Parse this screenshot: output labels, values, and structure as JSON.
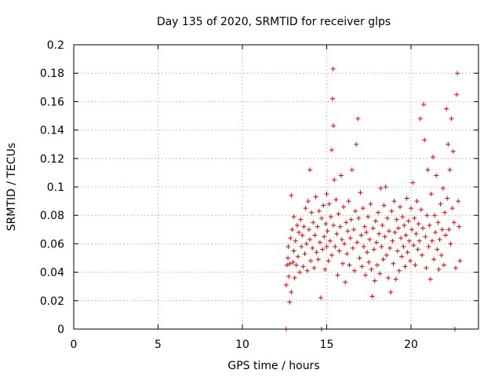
{
  "chart_data": {
    "type": "scatter",
    "title": "Day 135 of 2020, SRMTID for receiver glps",
    "xlabel": "GPS time / hours",
    "ylabel": "SRMTID / TECUs",
    "xlim": [
      0,
      24
    ],
    "ylim": [
      0,
      0.2
    ],
    "xticks": [
      0,
      5,
      10,
      15,
      20
    ],
    "xtick_labels": [
      "0",
      "5",
      "10",
      "15",
      "20"
    ],
    "yticks": [
      0,
      0.02,
      0.04,
      0.06,
      0.08,
      0.1,
      0.12,
      0.14,
      0.16,
      0.18,
      0.2
    ],
    "ytick_labels": [
      "0",
      "0.02",
      "0.04",
      "0.06",
      "0.08",
      "0.1",
      "0.12",
      "0.14",
      "0.16",
      "0.18",
      "0.2"
    ],
    "grid": true,
    "marker": "+",
    "color": "#e00000",
    "series": [
      {
        "points": [
          [
            12.6,
            0.0
          ],
          [
            12.6,
            0.031
          ],
          [
            12.65,
            0.045
          ],
          [
            12.7,
            0.05
          ],
          [
            12.72,
            0.058
          ],
          [
            12.75,
            0.037
          ],
          [
            12.8,
            0.019
          ],
          [
            12.82,
            0.046
          ],
          [
            12.85,
            0.064
          ],
          [
            12.9,
            0.094
          ],
          [
            12.9,
            0.026
          ],
          [
            12.95,
            0.07
          ],
          [
            13.0,
            0.047
          ],
          [
            13.05,
            0.055
          ],
          [
            13.05,
            0.079
          ],
          [
            13.1,
            0.036
          ],
          [
            13.15,
            0.062
          ],
          [
            13.2,
            0.045
          ],
          [
            13.25,
            0.073
          ],
          [
            13.3,
            0.051
          ],
          [
            13.35,
            0.068
          ],
          [
            13.4,
            0.04
          ],
          [
            13.45,
            0.077
          ],
          [
            13.5,
            0.058
          ],
          [
            13.55,
            0.066
          ],
          [
            13.6,
            0.044
          ],
          [
            13.65,
            0.072
          ],
          [
            13.7,
            0.053
          ],
          [
            13.75,
            0.085
          ],
          [
            13.8,
            0.06
          ],
          [
            13.85,
            0.041
          ],
          [
            13.9,
            0.09
          ],
          [
            13.95,
            0.07
          ],
          [
            14.0,
            0.063
          ],
          [
            14.0,
            0.112
          ],
          [
            14.05,
            0.048
          ],
          [
            14.1,
            0.082
          ],
          [
            14.15,
            0.057
          ],
          [
            14.2,
            0.075
          ],
          [
            14.25,
            0.043
          ],
          [
            14.3,
            0.066
          ],
          [
            14.35,
            0.093
          ],
          [
            14.4,
            0.054
          ],
          [
            14.45,
            0.072
          ],
          [
            14.5,
            0.049
          ],
          [
            14.55,
            0.083
          ],
          [
            14.6,
            0.061
          ],
          [
            14.65,
            0.022
          ],
          [
            14.7,
            0.078
          ],
          [
            14.7,
            0.0
          ],
          [
            14.75,
            0.056
          ],
          [
            14.8,
            0.087
          ],
          [
            14.85,
            0.065
          ],
          [
            14.9,
            0.042
          ],
          [
            14.95,
            0.074
          ],
          [
            15.0,
            0.095
          ],
          [
            15.0,
            0.058
          ],
          [
            15.05,
            0.069
          ],
          [
            15.1,
            0.048
          ],
          [
            15.15,
            0.088
          ],
          [
            15.2,
            0.062
          ],
          [
            15.25,
            0.079
          ],
          [
            15.3,
            0.126
          ],
          [
            15.3,
            0.052
          ],
          [
            15.35,
            0.162
          ],
          [
            15.38,
            0.183
          ],
          [
            15.4,
            0.073
          ],
          [
            15.4,
            0.143
          ],
          [
            15.45,
            0.105
          ],
          [
            15.5,
            0.058
          ],
          [
            15.55,
            0.091
          ],
          [
            15.6,
            0.067
          ],
          [
            15.65,
            0.038
          ],
          [
            15.7,
            0.081
          ],
          [
            15.75,
            0.055
          ],
          [
            15.8,
            0.072
          ],
          [
            15.85,
            0.108
          ],
          [
            15.9,
            0.063
          ],
          [
            15.95,
            0.046
          ],
          [
            16.0,
            0.086
          ],
          [
            16.05,
            0.06
          ],
          [
            16.1,
            0.033
          ],
          [
            16.15,
            0.075
          ],
          [
            16.2,
            0.053
          ],
          [
            16.25,
            0.069
          ],
          [
            16.3,
            0.09
          ],
          [
            16.35,
            0.045
          ],
          [
            16.4,
            0.064
          ],
          [
            16.45,
            0.077
          ],
          [
            16.5,
            0.112
          ],
          [
            16.55,
            0.057
          ],
          [
            16.6,
            0.07
          ],
          [
            16.65,
            0.041
          ],
          [
            16.7,
            0.083
          ],
          [
            16.75,
            0.13
          ],
          [
            16.8,
            0.061
          ],
          [
            16.85,
            0.148
          ],
          [
            16.9,
            0.078
          ],
          [
            16.95,
            0.05
          ],
          [
            17.0,
            0.096
          ],
          [
            17.05,
            0.066
          ],
          [
            17.1,
            0.044
          ],
          [
            17.15,
            0.085
          ],
          [
            17.2,
            0.058
          ],
          [
            17.25,
            0.072
          ],
          [
            17.3,
            0.038
          ],
          [
            17.35,
            0.068
          ],
          [
            17.4,
            0.054
          ],
          [
            17.45,
            0.079
          ],
          [
            17.5,
            0.047
          ],
          [
            17.55,
            0.063
          ],
          [
            17.6,
            0.088
          ],
          [
            17.65,
            0.042
          ],
          [
            17.7,
            0.023
          ],
          [
            17.75,
            0.071
          ],
          [
            17.8,
            0.056
          ],
          [
            17.85,
            0.034
          ],
          [
            17.9,
            0.076
          ],
          [
            17.95,
            0.061
          ],
          [
            18.0,
            0.045
          ],
          [
            18.05,
            0.082
          ],
          [
            18.1,
            0.067
          ],
          [
            18.15,
            0.039
          ],
          [
            18.2,
            0.099
          ],
          [
            18.25,
            0.058
          ],
          [
            18.3,
            0.073
          ],
          [
            18.35,
            0.049
          ],
          [
            18.4,
            0.087
          ],
          [
            18.45,
            0.065
          ],
          [
            18.5,
            0.1
          ],
          [
            18.55,
            0.052
          ],
          [
            18.6,
            0.078
          ],
          [
            18.65,
            0.036
          ],
          [
            18.7,
            0.069
          ],
          [
            18.75,
            0.057
          ],
          [
            18.8,
            0.026
          ],
          [
            18.85,
            0.083
          ],
          [
            18.9,
            0.062
          ],
          [
            18.95,
            0.046
          ],
          [
            19.0,
            0.09
          ],
          [
            19.05,
            0.068
          ],
          [
            19.1,
            0.035
          ],
          [
            19.15,
            0.077
          ],
          [
            19.2,
            0.055
          ],
          [
            19.25,
            0.071
          ],
          [
            19.3,
            0.041
          ],
          [
            19.35,
            0.086
          ],
          [
            19.4,
            0.064
          ],
          [
            19.45,
            0.051
          ],
          [
            19.5,
            0.079
          ],
          [
            19.55,
            0.058
          ],
          [
            19.6,
            0.073
          ],
          [
            19.65,
            0.044
          ],
          [
            19.7,
            0.066
          ],
          [
            19.75,
            0.092
          ],
          [
            19.8,
            0.054
          ],
          [
            19.85,
            0.076
          ],
          [
            19.9,
            0.062
          ],
          [
            19.95,
            0.048
          ],
          [
            20.0,
            0.085
          ],
          [
            20.05,
            0.07
          ],
          [
            20.1,
            0.103
          ],
          [
            20.15,
            0.059
          ],
          [
            20.2,
            0.078
          ],
          [
            20.25,
            0.045
          ],
          [
            20.3,
            0.067
          ],
          [
            20.35,
            0.09
          ],
          [
            20.4,
            0.056
          ],
          [
            20.45,
            0.074
          ],
          [
            20.5,
            0.062
          ],
          [
            20.55,
            0.148
          ],
          [
            20.6,
            0.084
          ],
          [
            20.65,
            0.052
          ],
          [
            20.7,
            0.071
          ],
          [
            20.75,
            0.158
          ],
          [
            20.8,
            0.133
          ],
          [
            20.85,
            0.065
          ],
          [
            20.9,
            0.043
          ],
          [
            20.95,
            0.08
          ],
          [
            21.0,
            0.112
          ],
          [
            21.05,
            0.058
          ],
          [
            21.1,
            0.073
          ],
          [
            21.15,
            0.035
          ],
          [
            21.2,
            0.095
          ],
          [
            21.25,
            0.062
          ],
          [
            21.3,
            0.121
          ],
          [
            21.35,
            0.049
          ],
          [
            21.4,
            0.08
          ],
          [
            21.45,
            0.068
          ],
          [
            21.5,
            0.108
          ],
          [
            21.55,
            0.056
          ],
          [
            21.6,
            0.075
          ],
          [
            21.65,
            0.042
          ],
          [
            21.7,
            0.063
          ],
          [
            21.75,
            0.088
          ],
          [
            21.8,
            0.052
          ],
          [
            21.85,
            0.07
          ],
          [
            21.9,
            0.099
          ],
          [
            21.95,
            0.045
          ],
          [
            22.0,
            0.082
          ],
          [
            22.05,
            0.066
          ],
          [
            22.1,
            0.155
          ],
          [
            22.15,
            0.092
          ],
          [
            22.2,
            0.13
          ],
          [
            22.25,
            0.07
          ],
          [
            22.3,
            0.112
          ],
          [
            22.35,
            0.06
          ],
          [
            22.4,
            0.148
          ],
          [
            22.45,
            0.085
          ],
          [
            22.5,
            0.125
          ],
          [
            22.55,
            0.075
          ],
          [
            22.6,
            0.0
          ],
          [
            22.65,
            0.043
          ],
          [
            22.7,
            0.165
          ],
          [
            22.75,
            0.18
          ],
          [
            22.8,
            0.09
          ],
          [
            22.85,
            0.072
          ],
          [
            22.9,
            0.048
          ]
        ]
      }
    ]
  }
}
